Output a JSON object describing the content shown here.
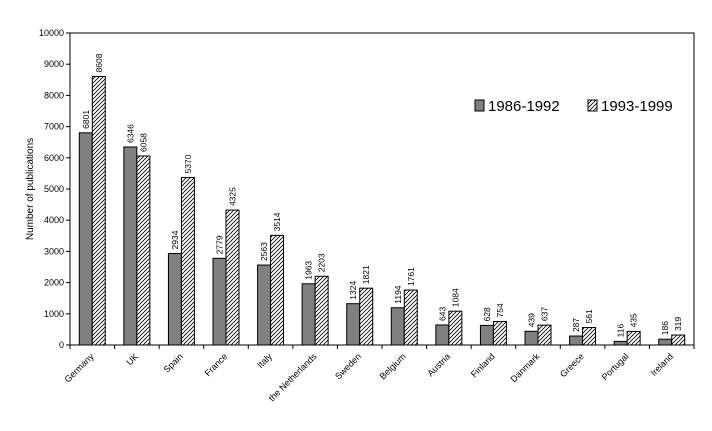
{
  "chart_data": {
    "type": "bar",
    "title": "",
    "xlabel": "",
    "ylabel": "Number of publications",
    "ylim": [
      0,
      10000
    ],
    "yticks": [
      0,
      1000,
      2000,
      3000,
      4000,
      5000,
      6000,
      7000,
      8000,
      9000,
      10000
    ],
    "grid": false,
    "legend_position": "upper-right",
    "categories": [
      "Germany",
      "UK",
      "Spain",
      "France",
      "Italy",
      "the Netherlands",
      "Sweden",
      "Belgium",
      "Austria",
      "Finland",
      "Danmark",
      "Greece",
      "Portugal",
      "Ireland"
    ],
    "series": [
      {
        "name": "1986-1992",
        "values": [
          6801,
          6346,
          2934,
          2779,
          2563,
          1963,
          1324,
          1194,
          643,
          628,
          439,
          287,
          116,
          186
        ],
        "fill": "#808080",
        "pattern": "solid"
      },
      {
        "name": "1993-1999",
        "values": [
          8608,
          6058,
          5370,
          4325,
          3514,
          2203,
          1821,
          1761,
          1084,
          754,
          637,
          561,
          435,
          319
        ],
        "fill": "#ffffff",
        "pattern": "diagonal-hatch"
      }
    ]
  }
}
